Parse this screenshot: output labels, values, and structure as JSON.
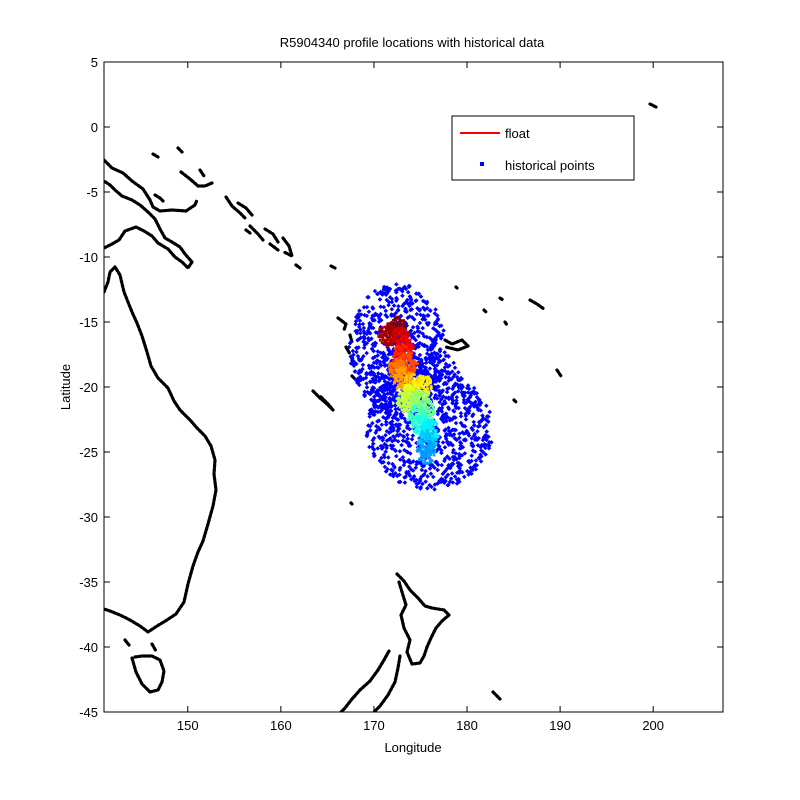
{
  "chart_data": {
    "type": "scatter",
    "title": "R5904340 profile locations with historical data",
    "xlabel": "Longitude",
    "ylabel": "Latitude",
    "xlim": [
      141,
      207.5
    ],
    "ylim": [
      -45,
      5
    ],
    "xticks": [
      150,
      160,
      170,
      180,
      190,
      200
    ],
    "yticks": [
      5,
      0,
      -5,
      -10,
      -15,
      -20,
      -25,
      -30,
      -35,
      -40,
      -45
    ],
    "grid": false,
    "legend": {
      "placement": "top-right",
      "entries": [
        {
          "label": "float",
          "marker": "line",
          "color": "#ff0000"
        },
        {
          "label": "historical points",
          "marker": "dot",
          "color": "#0000ff"
        }
      ]
    },
    "historical_cloud": {
      "color": "#0000ff",
      "region": {
        "lon_range": [
          166,
          184
        ],
        "lat_range": [
          -27.8,
          -11.8
        ]
      }
    },
    "float_profiles_colormap": "jet (early = dark red, late = light blue)",
    "float_profiles": [
      {
        "lon": 172.5,
        "lat": -15.5
      },
      {
        "lon": 171.5,
        "lat": -16.0
      },
      {
        "lon": 172.8,
        "lat": -16.3
      },
      {
        "lon": 173.3,
        "lat": -17.0
      },
      {
        "lon": 172.9,
        "lat": -17.6
      },
      {
        "lon": 173.7,
        "lat": -18.2
      },
      {
        "lon": 172.5,
        "lat": -18.7
      },
      {
        "lon": 173.1,
        "lat": -19.4
      },
      {
        "lon": 174.2,
        "lat": -19.8
      },
      {
        "lon": 175.2,
        "lat": -19.9
      },
      {
        "lon": 174.0,
        "lat": -20.6
      },
      {
        "lon": 173.5,
        "lat": -21.1
      },
      {
        "lon": 174.9,
        "lat": -21.0
      },
      {
        "lon": 175.6,
        "lat": -21.9
      },
      {
        "lon": 174.6,
        "lat": -22.3
      },
      {
        "lon": 175.2,
        "lat": -23.0
      },
      {
        "lon": 176.0,
        "lat": -23.4
      },
      {
        "lon": 175.7,
        "lat": -24.2
      },
      {
        "lon": 175.6,
        "lat": -25.0
      }
    ],
    "coastlines_color": "#000000"
  }
}
